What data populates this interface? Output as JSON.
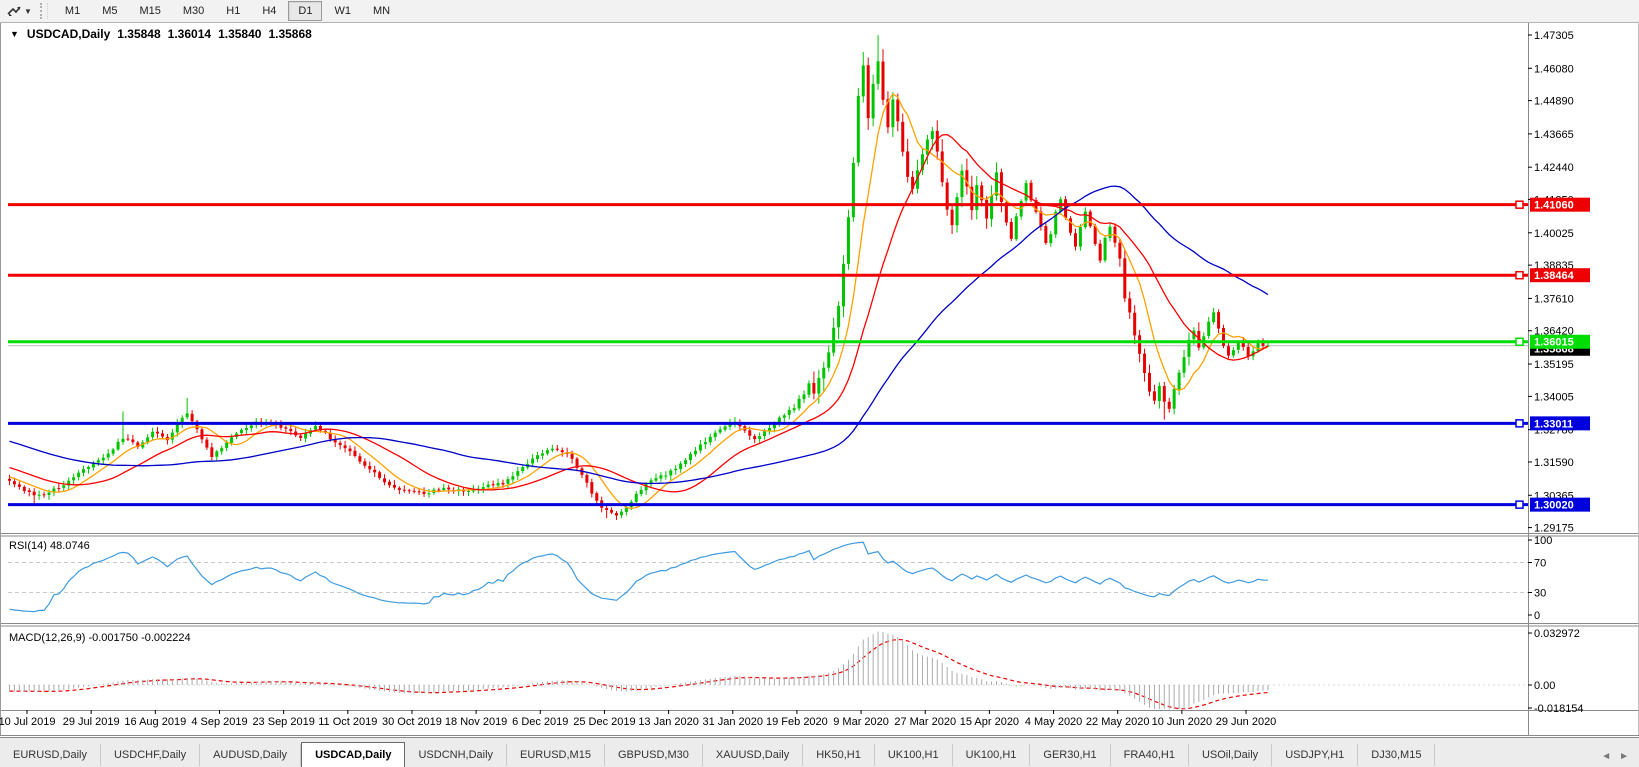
{
  "toolbar": {
    "chart_tool_icon": "chart-shift-icon",
    "timeframes": [
      "M1",
      "M5",
      "M15",
      "M30",
      "H1",
      "H4",
      "D1",
      "W1",
      "MN"
    ],
    "active_timeframe": "D1"
  },
  "chart": {
    "title": {
      "symbol": "USDCAD,Daily",
      "open": "1.35848",
      "high": "1.36014",
      "low": "1.35840",
      "close": "1.35868"
    },
    "price_axis_ticks": [
      "1.47305",
      "1.46080",
      "1.44890",
      "1.43665",
      "1.42440",
      "1.41250",
      "1.40025",
      "1.38835",
      "1.37610",
      "1.36420",
      "1.35195",
      "1.34005",
      "1.32780",
      "1.31590",
      "1.30365",
      "1.29175"
    ],
    "levels": [
      {
        "price": 1.4106,
        "label": "1.41060",
        "color": "#ee0000"
      },
      {
        "price": 1.38464,
        "label": "1.38464",
        "color": "#ee0000"
      },
      {
        "price": 1.36015,
        "label": "1.36015",
        "color": "#00dd00"
      },
      {
        "price": 1.33011,
        "label": "1.33011",
        "color": "#0000dd"
      },
      {
        "price": 1.3002,
        "label": "1.30020",
        "color": "#0000dd"
      }
    ],
    "current_price": {
      "value": 1.35868,
      "label": "1.35868",
      "line_color": "#bbbbbb",
      "label_bg": "#000000"
    },
    "candle_colors": {
      "up": "#00c400",
      "down": "#e60000"
    },
    "moving_averages": [
      {
        "name": "ma-fast",
        "period": 8,
        "color": "#ffa200"
      },
      {
        "name": "ma-mid",
        "period": 20,
        "color": "#ff0000"
      },
      {
        "name": "ma-slow",
        "period": 55,
        "color": "#0000c8"
      }
    ]
  },
  "rsi_panel": {
    "label": "RSI(14) 48.0746",
    "period": 14,
    "scale_labels": [
      {
        "text": "100",
        "value": 100
      },
      {
        "text": "70",
        "value": 70
      },
      {
        "text": "30",
        "value": 30
      },
      {
        "text": "0",
        "value": 0
      }
    ],
    "line_color": "#3e9be0"
  },
  "macd_panel": {
    "label": "MACD(12,26,9) -0.001750 -0.002224",
    "scale_labels": [
      {
        "text": "0.032972",
        "value": 0.032972
      },
      {
        "text": "0.00",
        "value": 0
      },
      {
        "text": "-0.018154",
        "value": -0.018154
      }
    ],
    "histogram_color": "#ababab",
    "signal_color": "#ee0000"
  },
  "date_axis": {
    "labels": [
      "10 Jul 2019",
      "29 Jul 2019",
      "16 Aug 2019",
      "4 Sep 2019",
      "23 Sep 2019",
      "11 Oct 2019",
      "30 Oct 2019",
      "18 Nov 2019",
      "6 Dec 2019",
      "25 Dec 2019",
      "13 Jan 2020",
      "31 Jan 2020",
      "19 Feb 2020",
      "9 Mar 2020",
      "27 Mar 2020",
      "15 Apr 2020",
      "4 May 2020",
      "22 May 2020",
      "10 Jun 2020",
      "29 Jun 2020"
    ]
  },
  "tabs": {
    "items": [
      "EURUSD,Daily",
      "USDCHF,Daily",
      "AUDUSD,Daily",
      "USDCAD,Daily",
      "USDCNH,Daily",
      "EURUSD,M15",
      "GBPUSD,M30",
      "XAUUSD,Daily",
      "HK50,H1",
      "UK100,H1",
      "UK100,H1",
      "GER30,H1",
      "FRA40,H1",
      "USOil,Daily",
      "USDJPY,H1",
      "DJ30,M15"
    ],
    "active_index": 3,
    "scroll_left": "◄",
    "scroll_right": "►"
  },
  "chart_data": {
    "type": "candlestick",
    "symbol": "USDCAD",
    "timeframe": "Daily",
    "candle_count": 256,
    "close_waypoints": [
      [
        0,
        1.309
      ],
      [
        2,
        1.3068
      ],
      [
        5,
        1.3032
      ],
      [
        8,
        1.3045
      ],
      [
        11,
        1.3078
      ],
      [
        14,
        1.3118
      ],
      [
        17,
        1.3152
      ],
      [
        20,
        1.3188
      ],
      [
        23,
        1.3248
      ],
      [
        26,
        1.3218
      ],
      [
        29,
        1.3268
      ],
      [
        32,
        1.3242
      ],
      [
        34,
        1.3298
      ],
      [
        36,
        1.3342
      ],
      [
        38,
        1.3282
      ],
      [
        41,
        1.3178
      ],
      [
        44,
        1.3232
      ],
      [
        47,
        1.3278
      ],
      [
        50,
        1.3302
      ],
      [
        53,
        1.3306
      ],
      [
        56,
        1.3278
      ],
      [
        59,
        1.3252
      ],
      [
        62,
        1.3292
      ],
      [
        65,
        1.3248
      ],
      [
        68,
        1.3212
      ],
      [
        71,
        1.3158
      ],
      [
        74,
        1.3122
      ],
      [
        77,
        1.3072
      ],
      [
        80,
        1.3052
      ],
      [
        84,
        1.3044
      ],
      [
        88,
        1.3062
      ],
      [
        92,
        1.3052
      ],
      [
        96,
        1.3068
      ],
      [
        100,
        1.3082
      ],
      [
        104,
        1.3142
      ],
      [
        107,
        1.3182
      ],
      [
        110,
        1.3212
      ],
      [
        113,
        1.3192
      ],
      [
        115,
        1.3142
      ],
      [
        117,
        1.3082
      ],
      [
        119,
        1.3012
      ],
      [
        121,
        1.2978
      ],
      [
        123,
        1.2962
      ],
      [
        125,
        1.2992
      ],
      [
        127,
        1.3042
      ],
      [
        130,
        1.3092
      ],
      [
        133,
        1.3112
      ],
      [
        136,
        1.3152
      ],
      [
        139,
        1.3202
      ],
      [
        142,
        1.3252
      ],
      [
        145,
        1.3292
      ],
      [
        147,
        1.3302
      ],
      [
        149,
        1.3272
      ],
      [
        151,
        1.3242
      ],
      [
        153,
        1.3272
      ],
      [
        155,
        1.3302
      ],
      [
        157,
        1.3332
      ],
      [
        159,
        1.3362
      ],
      [
        161,
        1.3412
      ],
      [
        162,
        1.3448
      ],
      [
        163,
        1.3412
      ],
      [
        164,
        1.3462
      ],
      [
        165,
        1.3512
      ],
      [
        166,
        1.3572
      ],
      [
        167,
        1.3642
      ],
      [
        168,
        1.3742
      ],
      [
        169,
        1.3892
      ],
      [
        170,
        1.4052
      ],
      [
        171,
        1.4252
      ],
      [
        172,
        1.4502
      ],
      [
        173,
        1.4612
      ],
      [
        174,
        1.4432
      ],
      [
        175,
        1.4562
      ],
      [
        176,
        1.4642
      ],
      [
        177,
        1.4482
      ],
      [
        178,
        1.4382
      ],
      [
        179,
        1.4482
      ],
      [
        180,
        1.4422
      ],
      [
        181,
        1.4302
      ],
      [
        182,
        1.4202
      ],
      [
        183,
        1.4152
      ],
      [
        184,
        1.4222
      ],
      [
        185,
        1.4282
      ],
      [
        186,
        1.4342
      ],
      [
        187,
        1.4382
      ],
      [
        188,
        1.4302
      ],
      [
        189,
        1.4182
      ],
      [
        190,
        1.4082
      ],
      [
        191,
        1.4022
      ],
      [
        192,
        1.4122
      ],
      [
        193,
        1.4232
      ],
      [
        194,
        1.4162
      ],
      [
        195,
        1.4082
      ],
      [
        196,
        1.4182
      ],
      [
        197,
        1.4122
      ],
      [
        198,
        1.4062
      ],
      [
        199,
        1.4152
      ],
      [
        200,
        1.4222
      ],
      [
        201,
        1.4122
      ],
      [
        202,
        1.4042
      ],
      [
        203,
        1.3982
      ],
      [
        204,
        1.4062
      ],
      [
        205,
        1.4122
      ],
      [
        206,
        1.4182
      ],
      [
        207,
        1.4122
      ],
      [
        208,
        1.4082
      ],
      [
        209,
        1.4022
      ],
      [
        210,
        1.3962
      ],
      [
        211,
        1.4002
      ],
      [
        212,
        1.4082
      ],
      [
        213,
        1.4122
      ],
      [
        214,
        1.4062
      ],
      [
        215,
        1.4002
      ],
      [
        216,
        1.3952
      ],
      [
        217,
        1.4022
      ],
      [
        218,
        1.4082
      ],
      [
        219,
        1.4022
      ],
      [
        220,
        1.3962
      ],
      [
        221,
        1.3902
      ],
      [
        222,
        1.3982
      ],
      [
        223,
        1.4022
      ],
      [
        224,
        1.3962
      ],
      [
        225,
        1.3902
      ],
      [
        226,
        1.3762
      ],
      [
        227,
        1.3702
      ],
      [
        228,
        1.3622
      ],
      [
        229,
        1.3562
      ],
      [
        230,
        1.3482
      ],
      [
        231,
        1.3422
      ],
      [
        232,
        1.3392
      ],
      [
        233,
        1.3442
      ],
      [
        234,
        1.3382
      ],
      [
        235,
        1.3352
      ],
      [
        236,
        1.3422
      ],
      [
        237,
        1.3492
      ],
      [
        238,
        1.3542
      ],
      [
        239,
        1.3602
      ],
      [
        240,
        1.3642
      ],
      [
        241,
        1.3582
      ],
      [
        242,
        1.3622
      ],
      [
        243,
        1.3672
      ],
      [
        244,
        1.3712
      ],
      [
        245,
        1.3652
      ],
      [
        246,
        1.3592
      ],
      [
        247,
        1.3547
      ],
      [
        248,
        1.3567
      ],
      [
        249,
        1.3607
      ],
      [
        250,
        1.3577
      ],
      [
        251,
        1.3547
      ],
      [
        252,
        1.3567
      ],
      [
        253,
        1.3607
      ],
      [
        254,
        1.3587
      ],
      [
        255,
        1.35868
      ]
    ],
    "wick_overrides": [
      [
        5,
        "l",
        1.2999
      ],
      [
        23,
        "h",
        1.3345
      ],
      [
        36,
        "h",
        1.3395
      ],
      [
        121,
        "l",
        1.2952
      ],
      [
        173,
        "h",
        1.4668
      ],
      [
        176,
        "h",
        1.473
      ],
      [
        234,
        "l",
        1.3315
      ],
      [
        244,
        "h",
        1.3716
      ]
    ],
    "last_candle": {
      "open": 1.35848,
      "high": 1.36014,
      "low": 1.3584,
      "close": 1.35868
    },
    "price_range_visible": [
      1.29175,
      1.47305
    ],
    "rsi_last": 48.0746,
    "macd_last": -0.00175,
    "macd_signal_last": -0.002224,
    "macd_range_visible": [
      -0.018154,
      0.032972
    ],
    "grid": "off",
    "background": "#ffffff"
  }
}
